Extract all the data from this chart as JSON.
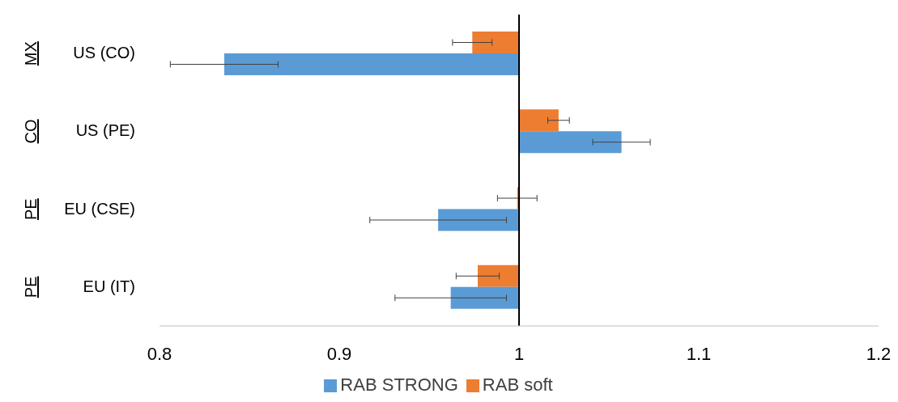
{
  "chart_data": {
    "type": "bar",
    "orientation": "horizontal",
    "categories": [
      "US (CO)",
      "US (PE)",
      "EU (CSE)",
      "EU (IT)"
    ],
    "series": [
      {
        "name": "RAB soft",
        "color": "#ed7d31",
        "base": [
          1,
          1,
          1,
          1
        ],
        "values": [
          -0.026,
          0.022,
          -0.001,
          -0.023
        ],
        "errors": [
          0.011,
          0.006,
          0.011,
          0.012
        ]
      },
      {
        "name": "RAB STRONG",
        "color": "#5b9bd5",
        "base": [
          1,
          1,
          1,
          1
        ],
        "values": [
          -0.164,
          0.057,
          -0.045,
          -0.038
        ],
        "errors": [
          0.03,
          0.016,
          0.038,
          0.031
        ]
      }
    ],
    "annotations": [
      "MX",
      "CO",
      "PE",
      "PE"
    ],
    "xlim": [
      0.8,
      1.2
    ],
    "xticks": [
      0.8,
      0.9,
      1,
      1.1,
      1.2
    ],
    "ref_lines": [
      {
        "axis": "x",
        "value": 1,
        "color": "#000000"
      }
    ],
    "grid": false,
    "legend": "bottom"
  }
}
